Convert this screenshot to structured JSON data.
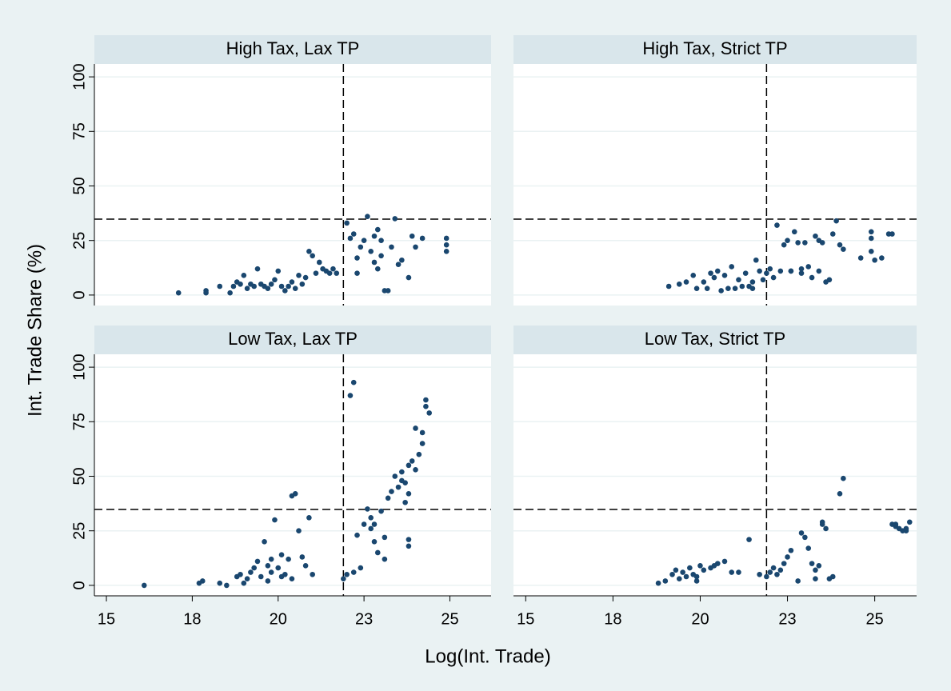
{
  "ylabel": "Int. Trade Share (%)",
  "xlabel": "Log(Int. Trade)",
  "chart_data": [
    {
      "type": "scatter",
      "title": "High Tax, Lax TP",
      "color": "#1a476f",
      "grid": true,
      "xlim": [
        14.65,
        26.2
      ],
      "ylim": [
        -4.8,
        105.9
      ],
      "yticks": [
        0,
        25,
        50,
        75,
        100
      ],
      "vline": 21.9,
      "hline": 34.8,
      "x": [
        17.1,
        17.9,
        17.9,
        18.3,
        18.6,
        18.7,
        18.8,
        18.9,
        19.0,
        19.1,
        19.2,
        19.3,
        19.4,
        19.5,
        19.6,
        19.7,
        19.8,
        19.9,
        20.0,
        20.1,
        20.2,
        20.3,
        20.4,
        20.5,
        20.6,
        20.7,
        20.8,
        20.9,
        21.0,
        21.1,
        21.2,
        21.3,
        21.4,
        21.5,
        21.6,
        21.7,
        22.0,
        22.1,
        22.2,
        22.3,
        22.4,
        22.5,
        22.6,
        22.7,
        22.8,
        22.9,
        23.0,
        23.1,
        23.2,
        23.3,
        23.4,
        23.5,
        23.6,
        23.8,
        23.9,
        24.0,
        24.2,
        24.9,
        24.9,
        24.9,
        22.9,
        23.0,
        22.3,
        22.8
      ],
      "y": [
        1,
        1,
        2,
        4,
        1,
        4,
        6,
        5,
        9,
        3,
        5,
        4,
        12,
        5,
        4,
        3,
        5,
        7,
        11,
        4,
        2,
        4,
        6,
        3,
        9,
        5,
        8,
        20,
        18,
        10,
        15,
        12,
        11,
        10,
        12,
        10,
        33,
        26,
        28,
        17,
        22,
        25,
        36,
        20,
        15,
        12,
        18,
        2,
        2,
        22,
        35,
        14,
        16,
        8,
        27,
        22,
        26,
        26,
        23,
        20,
        30,
        25,
        10,
        27
      ]
    },
    {
      "type": "scatter",
      "title": "High Tax, Strict TP",
      "color": "#1a476f",
      "grid": true,
      "xlim": [
        14.65,
        26.2
      ],
      "ylim": [
        -4.8,
        105.9
      ],
      "yticks": [
        0,
        25,
        50,
        75,
        100
      ],
      "vline": 21.9,
      "hline": 34.8,
      "x": [
        19.1,
        19.4,
        19.6,
        19.8,
        19.9,
        20.1,
        20.2,
        20.3,
        20.4,
        20.5,
        20.6,
        20.7,
        20.8,
        20.9,
        21.0,
        21.1,
        21.2,
        21.3,
        21.4,
        21.5,
        21.6,
        21.7,
        21.8,
        21.9,
        22.0,
        22.1,
        22.2,
        22.3,
        22.4,
        22.5,
        22.6,
        22.7,
        22.8,
        22.9,
        23.0,
        23.1,
        23.2,
        23.3,
        23.4,
        23.5,
        23.6,
        23.7,
        23.8,
        23.9,
        24.0,
        24.1,
        24.6,
        24.9,
        24.9,
        24.9,
        25.0,
        25.2,
        25.4,
        25.5,
        23.4,
        22.9,
        22.6,
        21.5
      ],
      "y": [
        4,
        5,
        6,
        9,
        3,
        6,
        3,
        10,
        8,
        11,
        2,
        9,
        3,
        13,
        3,
        7,
        4,
        10,
        4,
        6,
        16,
        11,
        7,
        10,
        12,
        8,
        32,
        11,
        23,
        25,
        11,
        29,
        24,
        10,
        24,
        13,
        8,
        27,
        25,
        24,
        6,
        7,
        28,
        34,
        23,
        21,
        17,
        29,
        26,
        20,
        16,
        17,
        28,
        28,
        11,
        12,
        11,
        3
      ]
    },
    {
      "type": "scatter",
      "title": "Low Tax, Lax TP",
      "color": "#1a476f",
      "grid": true,
      "xlim": [
        14.65,
        26.2
      ],
      "ylim": [
        -4.8,
        105.9
      ],
      "yticks": [
        0,
        25,
        50,
        75,
        100
      ],
      "vline": 21.9,
      "hline": 34.8,
      "xticks": [
        15,
        {
          "value": 17.5,
          "label": "18"
        },
        20,
        {
          "value": 22.5,
          "label": "23"
        },
        25
      ],
      "x": [
        16.1,
        17.7,
        17.8,
        18.3,
        18.5,
        18.8,
        18.9,
        19.0,
        19.1,
        19.2,
        19.3,
        19.4,
        19.5,
        19.6,
        19.7,
        19.8,
        19.9,
        20.0,
        20.1,
        20.2,
        20.3,
        20.4,
        20.5,
        20.6,
        20.7,
        20.8,
        20.9,
        21.0,
        19.8,
        20.1,
        20.4,
        19.7,
        22.1,
        22.2,
        21.9,
        22.0,
        22.2,
        22.4,
        22.3,
        22.5,
        22.6,
        22.7,
        22.8,
        22.8,
        22.9,
        23.0,
        23.1,
        23.2,
        23.3,
        23.4,
        23.5,
        23.6,
        23.7,
        23.8,
        23.9,
        23.7,
        23.8,
        23.8,
        23.8,
        24.0,
        24.0,
        24.1,
        24.2,
        24.2,
        24.3,
        24.3,
        24.4,
        22.7,
        23.1,
        23.6
      ],
      "y": [
        0,
        1,
        2,
        1,
        0,
        4,
        5,
        1,
        3,
        6,
        8,
        11,
        4,
        20,
        9,
        12,
        30,
        8,
        14,
        5,
        12,
        41,
        42,
        25,
        13,
        9,
        31,
        5,
        6,
        4,
        3,
        2,
        87,
        93,
        3,
        5,
        6,
        8,
        23,
        28,
        35,
        31,
        20,
        28,
        15,
        34,
        12,
        40,
        43,
        50,
        45,
        52,
        47,
        55,
        57,
        38,
        42,
        21,
        18,
        53,
        72,
        60,
        65,
        70,
        85,
        82,
        79,
        26,
        22,
        48
      ]
    },
    {
      "type": "scatter",
      "title": "Low Tax, Strict TP",
      "color": "#1a476f",
      "grid": true,
      "xlim": [
        14.65,
        26.2
      ],
      "ylim": [
        -4.8,
        105.9
      ],
      "yticks": [
        0,
        25,
        50,
        75,
        100
      ],
      "vline": 21.9,
      "hline": 34.8,
      "xticks": [
        15,
        {
          "value": 17.5,
          "label": "18"
        },
        20,
        {
          "value": 22.5,
          "label": "23"
        },
        25
      ],
      "x": [
        18.8,
        19.0,
        19.2,
        19.3,
        19.4,
        19.5,
        19.6,
        19.7,
        19.8,
        19.9,
        20.0,
        20.1,
        20.3,
        20.5,
        20.7,
        20.9,
        21.1,
        21.4,
        21.7,
        21.9,
        22.0,
        22.1,
        22.2,
        22.4,
        22.5,
        22.6,
        22.3,
        22.8,
        22.9,
        23.0,
        23.1,
        23.2,
        23.3,
        23.4,
        23.5,
        23.6,
        23.7,
        23.8,
        23.3,
        23.5,
        24.0,
        24.1,
        25.5,
        25.6,
        25.7,
        25.8,
        25.9,
        26.0,
        25.9,
        25.6,
        19.9,
        20.4
      ],
      "y": [
        1,
        2,
        5,
        7,
        3,
        6,
        4,
        8,
        5,
        2,
        9,
        7,
        8,
        10,
        11,
        6,
        6,
        21,
        5,
        4,
        6,
        8,
        5,
        10,
        13,
        16,
        7,
        2,
        24,
        22,
        17,
        10,
        7,
        9,
        29,
        26,
        3,
        4,
        3,
        28,
        42,
        49,
        28,
        27,
        26,
        25,
        26,
        29,
        25,
        28,
        4,
        9
      ]
    }
  ]
}
